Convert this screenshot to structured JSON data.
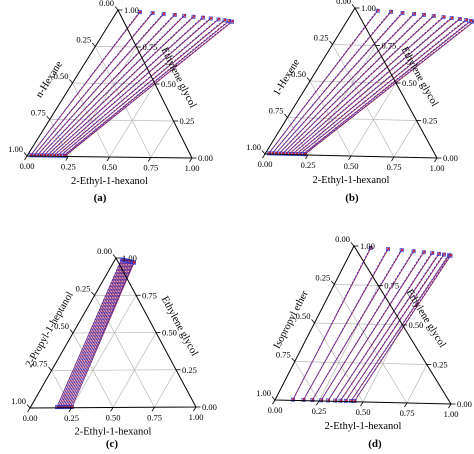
{
  "colors": {
    "grid": "#b8b8b8",
    "axis": "#000000",
    "tie_solid": "#9b1c4b",
    "tie_dashed": "#3a35c8",
    "marker_blue": "#2b3bd6",
    "marker_red": "#d0202e"
  },
  "icons": {
    "experimental_marker": "open-square",
    "calculated_marker": "filled-circle"
  },
  "chart_data": [
    {
      "type": "ternary",
      "panel_label": "(a)",
      "axis_labels": {
        "left": "n-Hexane",
        "right": "Ethylene glycol",
        "bottom": "2-Ethyl-1-hexanol"
      },
      "ticks": [
        "0.00",
        "0.25",
        "0.50",
        "0.75",
        "1.00"
      ],
      "tie_line_styles": [
        "solid",
        "dashed"
      ],
      "tie_lines": [
        {
          "ehex": [
            0.02,
            0.14
          ],
          "eg": [
            0.005,
            0.987
          ]
        },
        {
          "ehex": [
            0.04,
            0.22
          ],
          "eg": [
            0.005,
            0.982
          ]
        },
        {
          "ehex": [
            0.06,
            0.29
          ],
          "eg": [
            0.005,
            0.976
          ]
        },
        {
          "ehex": [
            0.08,
            0.36
          ],
          "eg": [
            0.005,
            0.971
          ]
        },
        {
          "ehex": [
            0.1,
            0.42
          ],
          "eg": [
            0.005,
            0.966
          ]
        },
        {
          "ehex": [
            0.12,
            0.48
          ],
          "eg": [
            0.005,
            0.96
          ]
        },
        {
          "ehex": [
            0.14,
            0.54
          ],
          "eg": [
            0.005,
            0.955
          ]
        },
        {
          "ehex": [
            0.16,
            0.59
          ],
          "eg": [
            0.005,
            0.95
          ]
        },
        {
          "ehex": [
            0.18,
            0.64
          ],
          "eg": [
            0.005,
            0.944
          ]
        },
        {
          "ehex": [
            0.2,
            0.68
          ],
          "eg": [
            0.005,
            0.939
          ]
        },
        {
          "ehex": [
            0.22,
            0.71
          ],
          "eg": [
            0.005,
            0.934
          ]
        },
        {
          "ehex": [
            0.23,
            0.73
          ],
          "eg": [
            0.005,
            0.93
          ]
        }
      ]
    },
    {
      "type": "ternary",
      "panel_label": "(b)",
      "axis_labels": {
        "left": "1-Hexene",
        "right": "Ethylene glycol",
        "bottom": "2-Ethyl-1-hexanol"
      },
      "ticks": [
        "0.00",
        "0.25",
        "0.50",
        "0.75",
        "1.00"
      ],
      "tie_line_styles": [
        "solid",
        "dashed"
      ],
      "tie_lines": [
        {
          "ehex": [
            0.02,
            0.14
          ],
          "eg": [
            0.005,
            0.985
          ]
        },
        {
          "ehex": [
            0.04,
            0.22
          ],
          "eg": [
            0.005,
            0.98
          ]
        },
        {
          "ehex": [
            0.06,
            0.29
          ],
          "eg": [
            0.005,
            0.974
          ]
        },
        {
          "ehex": [
            0.08,
            0.36
          ],
          "eg": [
            0.005,
            0.969
          ]
        },
        {
          "ehex": [
            0.1,
            0.42
          ],
          "eg": [
            0.005,
            0.964
          ]
        },
        {
          "ehex": [
            0.12,
            0.48
          ],
          "eg": [
            0.005,
            0.958
          ]
        },
        {
          "ehex": [
            0.14,
            0.54
          ],
          "eg": [
            0.005,
            0.952
          ]
        },
        {
          "ehex": [
            0.16,
            0.59
          ],
          "eg": [
            0.005,
            0.947
          ]
        },
        {
          "ehex": [
            0.18,
            0.64
          ],
          "eg": [
            0.005,
            0.942
          ]
        },
        {
          "ehex": [
            0.2,
            0.68
          ],
          "eg": [
            0.005,
            0.936
          ]
        },
        {
          "ehex": [
            0.22,
            0.71
          ],
          "eg": [
            0.005,
            0.931
          ]
        },
        {
          "ehex": [
            0.23,
            0.73
          ],
          "eg": [
            0.005,
            0.927
          ]
        }
      ]
    },
    {
      "type": "ternary",
      "panel_label": "(c)",
      "axis_labels": {
        "left": "2-Propyl-1-heptanol",
        "right": "Ethylene glycol",
        "bottom": "2-Ethyl-1-hexanol"
      },
      "ticks": [
        "0.00",
        "0.25",
        "0.50",
        "0.75",
        "1.00"
      ],
      "tie_line_styles": [
        "solid",
        "dashed"
      ],
      "tie_lines": [
        {
          "ehex": [
            0.16,
            0.04
          ],
          "eg": [
            0.005,
            0.99
          ]
        },
        {
          "ehex": [
            0.17,
            0.05
          ],
          "eg": [
            0.005,
            0.988
          ]
        },
        {
          "ehex": [
            0.18,
            0.06
          ],
          "eg": [
            0.005,
            0.985
          ]
        },
        {
          "ehex": [
            0.19,
            0.07
          ],
          "eg": [
            0.005,
            0.983
          ]
        },
        {
          "ehex": [
            0.2,
            0.08
          ],
          "eg": [
            0.005,
            0.98
          ]
        },
        {
          "ehex": [
            0.21,
            0.09
          ],
          "eg": [
            0.005,
            0.978
          ]
        },
        {
          "ehex": [
            0.22,
            0.1
          ],
          "eg": [
            0.005,
            0.975
          ]
        },
        {
          "ehex": [
            0.23,
            0.11
          ],
          "eg": [
            0.005,
            0.973
          ]
        },
        {
          "ehex": [
            0.24,
            0.12
          ],
          "eg": [
            0.005,
            0.97
          ]
        },
        {
          "ehex": [
            0.25,
            0.125
          ],
          "eg": [
            0.005,
            0.968
          ]
        }
      ]
    },
    {
      "type": "ternary",
      "panel_label": "(d)",
      "axis_labels": {
        "left": "Isopropyl ether",
        "right": "Ethylene glycol",
        "bottom": "2-Ethyl-1-hexanol"
      },
      "ticks": [
        "0.00",
        "0.25",
        "0.50",
        "0.75",
        "1.00"
      ],
      "tie_line_styles": [
        "solid",
        "dashed"
      ],
      "tie_lines": [
        {
          "ehex": [
            0.1,
            0.1
          ],
          "eg": [
            0.005,
            0.99
          ]
        },
        {
          "ehex": [
            0.16,
            0.2
          ],
          "eg": [
            0.005,
            0.985
          ]
        },
        {
          "ehex": [
            0.21,
            0.28
          ],
          "eg": [
            0.005,
            0.98
          ]
        },
        {
          "ehex": [
            0.26,
            0.35
          ],
          "eg": [
            0.005,
            0.975
          ]
        },
        {
          "ehex": [
            0.3,
            0.41
          ],
          "eg": [
            0.005,
            0.97
          ]
        },
        {
          "ehex": [
            0.34,
            0.46
          ],
          "eg": [
            0.005,
            0.966
          ]
        },
        {
          "ehex": [
            0.37,
            0.5
          ],
          "eg": [
            0.005,
            0.962
          ]
        },
        {
          "ehex": [
            0.4,
            0.53
          ],
          "eg": [
            0.005,
            0.958
          ]
        },
        {
          "ehex": [
            0.43,
            0.56
          ],
          "eg": [
            0.005,
            0.955
          ]
        },
        {
          "ehex": [
            0.45,
            0.57
          ],
          "eg": [
            0.005,
            0.952
          ]
        }
      ]
    }
  ]
}
